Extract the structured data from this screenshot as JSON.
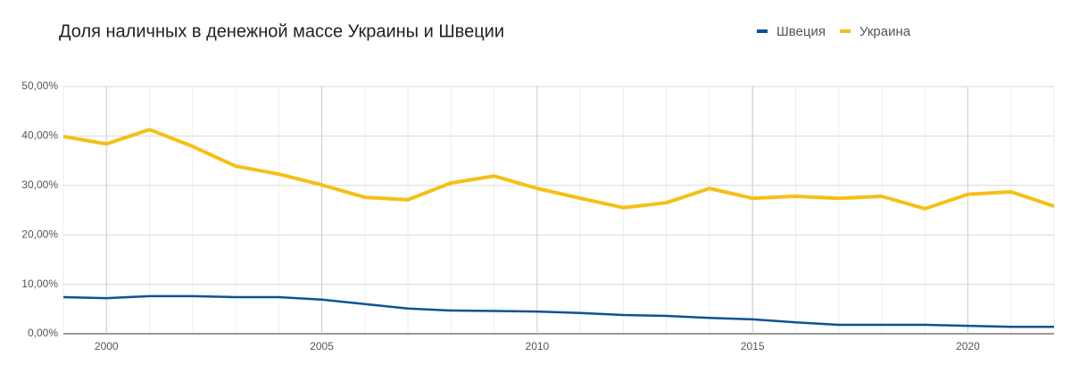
{
  "chart_data": {
    "type": "line",
    "title": "Доля наличных в денежной массе Украины и Швеции",
    "x": [
      1999,
      2000,
      2001,
      2002,
      2003,
      2004,
      2005,
      2006,
      2007,
      2008,
      2009,
      2010,
      2011,
      2012,
      2013,
      2014,
      2015,
      2016,
      2017,
      2018,
      2019,
      2020,
      2021,
      2022
    ],
    "series": [
      {
        "name": "Швеция",
        "color": "#0b5394",
        "values": [
          7.4,
          7.2,
          7.6,
          7.6,
          7.4,
          7.4,
          6.9,
          6.0,
          5.1,
          4.7,
          4.6,
          4.5,
          4.2,
          3.8,
          3.6,
          3.2,
          2.9,
          2.3,
          1.8,
          1.8,
          1.8,
          1.6,
          1.4,
          1.4
        ]
      },
      {
        "name": "Украина",
        "color": "#f6bf15",
        "values": [
          39.9,
          38.4,
          41.3,
          37.9,
          33.9,
          32.3,
          30.1,
          27.6,
          27.1,
          30.5,
          31.9,
          29.4,
          27.4,
          25.5,
          26.5,
          29.4,
          27.4,
          27.8,
          27.4,
          27.8,
          25.3,
          28.2,
          28.7,
          25.8
        ]
      }
    ],
    "xlim": [
      1999,
      2022
    ],
    "xticks": [
      2000,
      2005,
      2010,
      2015,
      2020
    ],
    "ylim": [
      0,
      50
    ],
    "yticks": [
      {
        "value": 0,
        "label": "0,00%"
      },
      {
        "value": 10,
        "label": "10,00%"
      },
      {
        "value": 20,
        "label": "20,00%"
      },
      {
        "value": 30,
        "label": "30,00%"
      },
      {
        "value": 40,
        "label": "40,00%"
      },
      {
        "value": 50,
        "label": "50,00%"
      }
    ],
    "grid": true,
    "legend": "top-right"
  }
}
